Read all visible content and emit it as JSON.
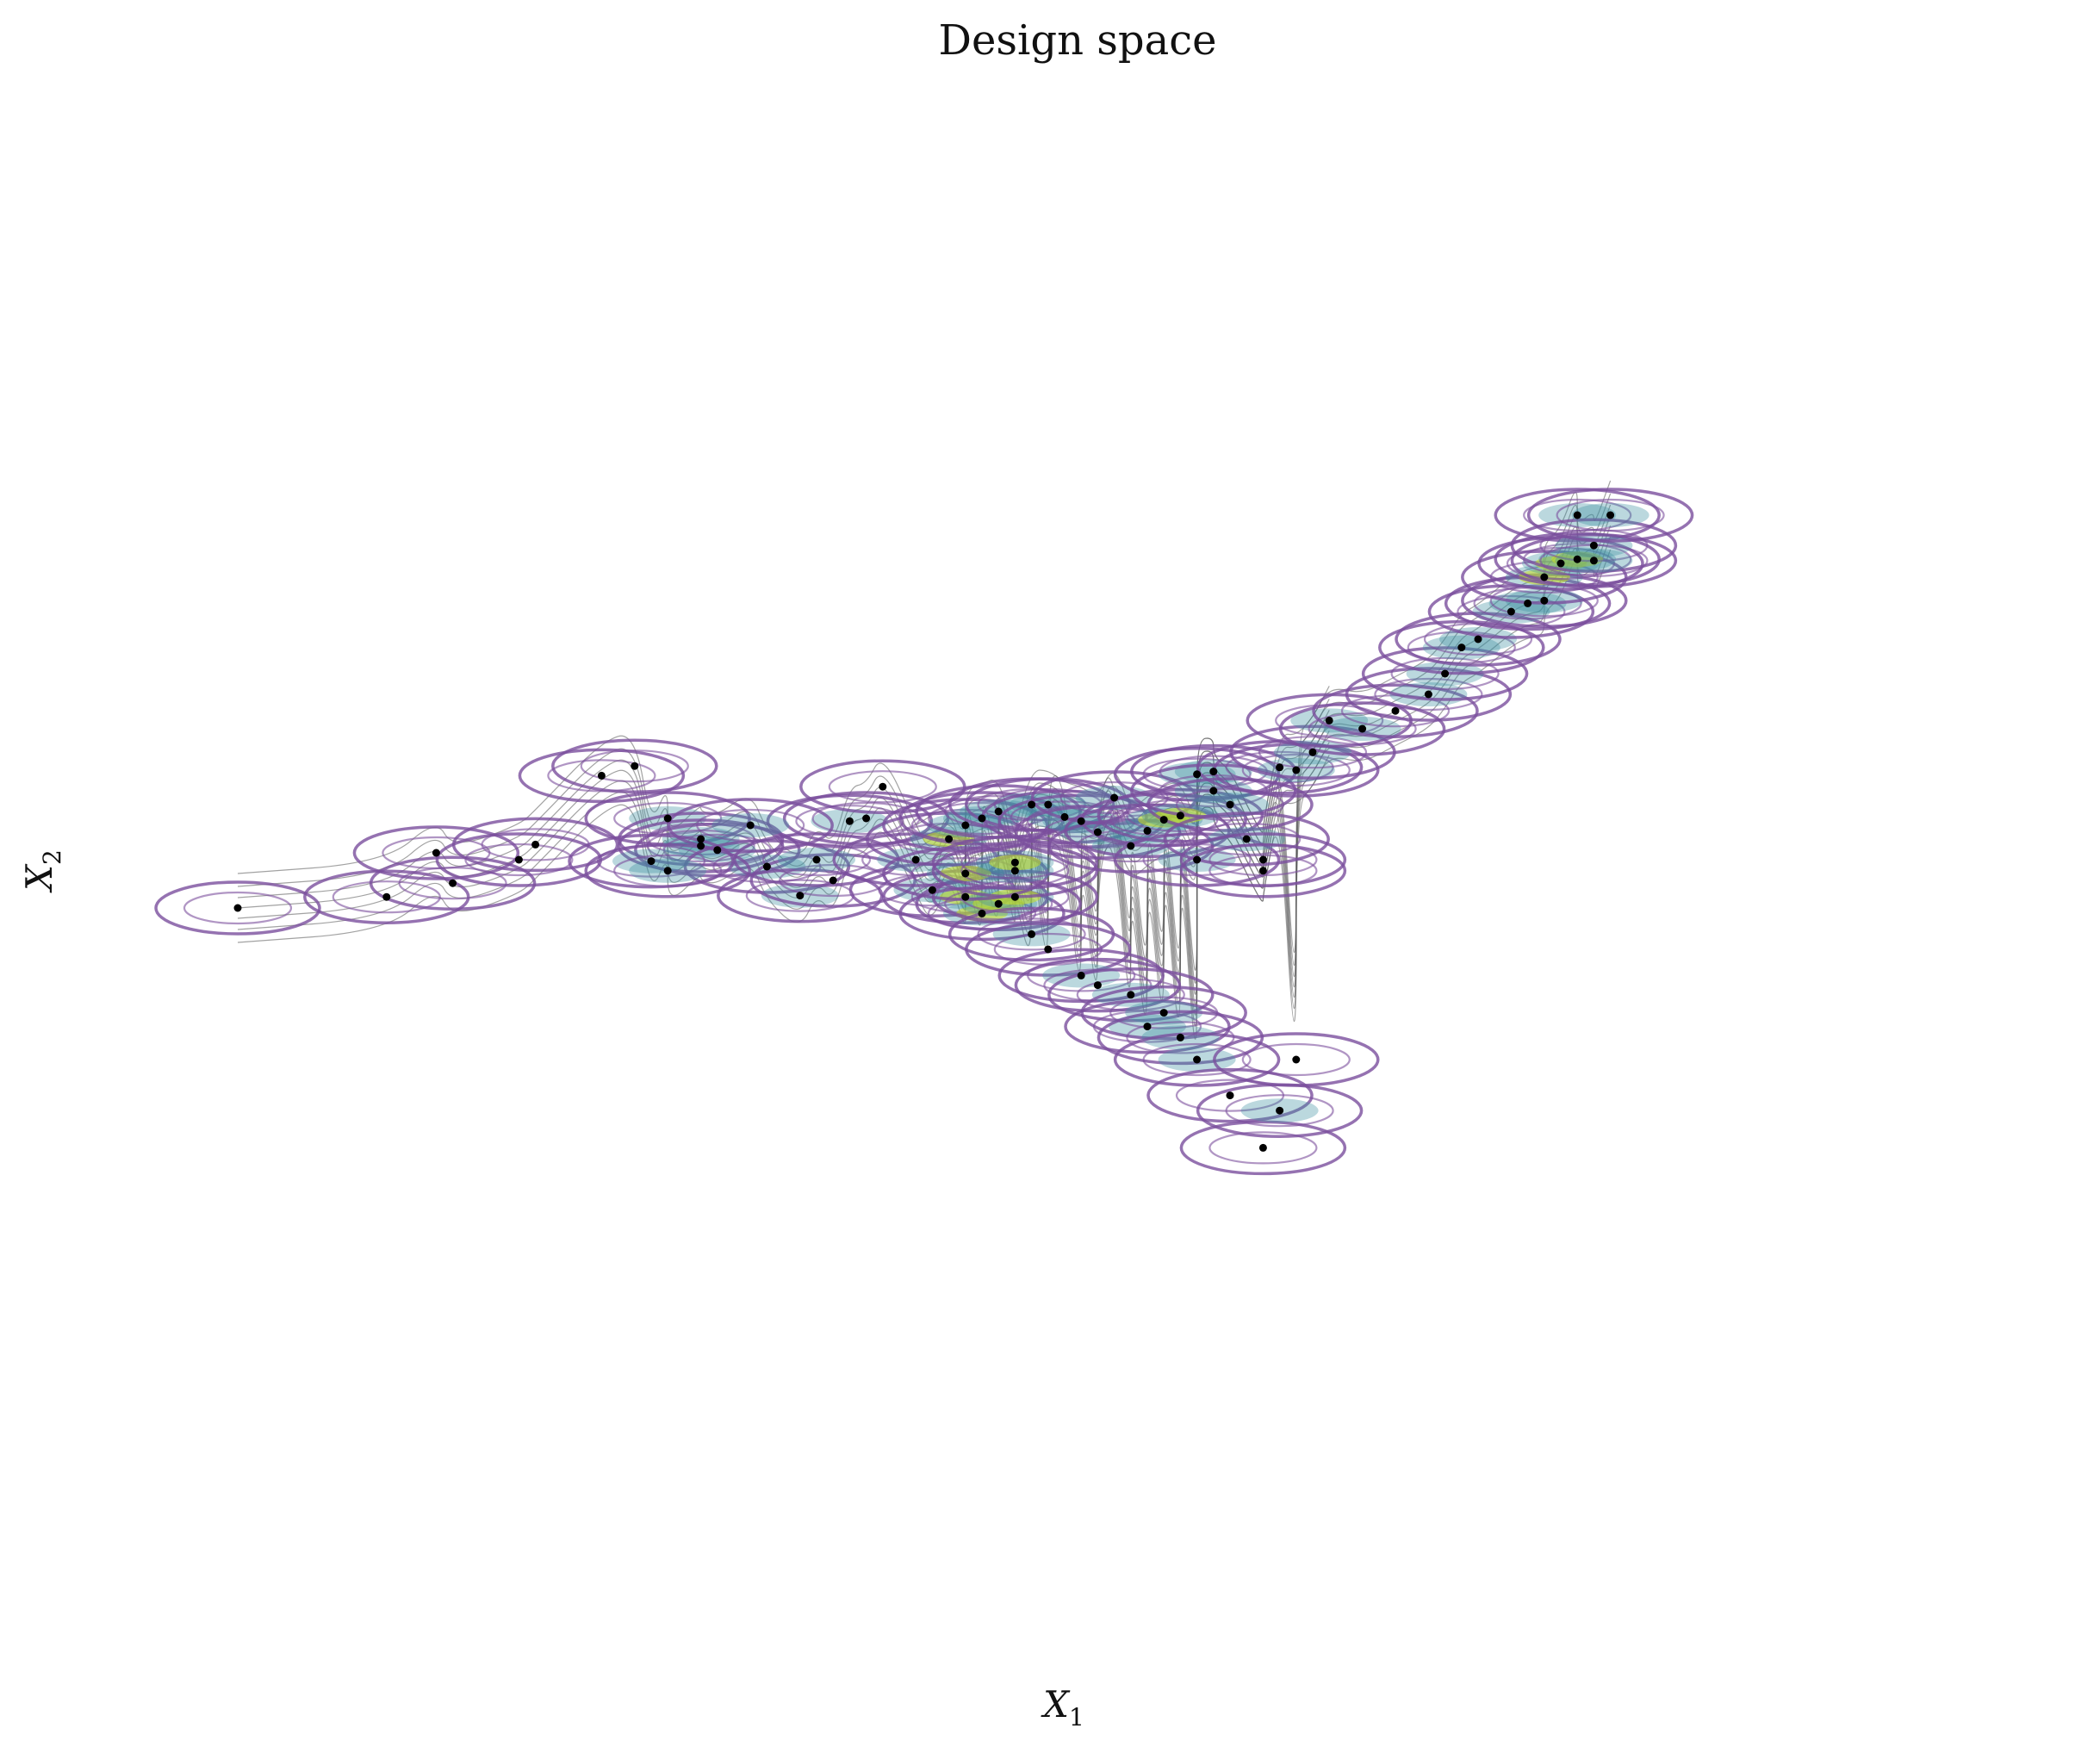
{
  "chart_data": {
    "type": "scatter",
    "title": "Design space",
    "xlabel": "X_1",
    "ylabel": "X_2",
    "xlabel_parts": {
      "base": "X",
      "sub": "1"
    },
    "ylabel_parts": {
      "base": "X",
      "sub": "2"
    },
    "axes_visible": false,
    "grid": false,
    "xlim": [
      0,
      1
    ],
    "ylim": [
      0,
      1
    ],
    "overlays": [
      "kernel density contours (viridis fill, purple outer levels)",
      "grey density contour lines"
    ],
    "colors": {
      "points": "#000000",
      "outer_contour": "#7b4f9d",
      "mid_contour": "#3b8fa0",
      "peak_contour": "#c8e020",
      "grey_contour": "#555555"
    },
    "series": [
      {
        "x": [
          0.05,
          0.17,
          0.14,
          0.18,
          0.22,
          0.23,
          0.27,
          0.29,
          0.31,
          0.33,
          0.33,
          0.34,
          0.37,
          0.39,
          0.41,
          0.42,
          0.43,
          0.44,
          0.47,
          0.49,
          0.5,
          0.51,
          0.52,
          0.53,
          0.54,
          0.56,
          0.57,
          0.59,
          0.6,
          0.61,
          0.62,
          0.63,
          0.65,
          0.67,
          0.68,
          0.69,
          0.3,
          0.31,
          0.36,
          0.4,
          0.46,
          0.48,
          0.49,
          0.49,
          0.5,
          0.51,
          0.52,
          0.52,
          0.53,
          0.54,
          0.55,
          0.56,
          0.57,
          0.58,
          0.59,
          0.6,
          0.61,
          0.62,
          0.63,
          0.63,
          0.64,
          0.64,
          0.65,
          0.66,
          0.67,
          0.67,
          0.68,
          0.69,
          0.7,
          0.71,
          0.73,
          0.75,
          0.77,
          0.78,
          0.79,
          0.8,
          0.82,
          0.83,
          0.84,
          0.84,
          0.85,
          0.86,
          0.86,
          0.87,
          0.87,
          0.88
        ],
        "y": [
          0.485,
          0.525,
          0.493,
          0.503,
          0.52,
          0.531,
          0.581,
          0.588,
          0.55,
          0.535,
          0.53,
          0.527,
          0.515,
          0.494,
          0.505,
          0.548,
          0.55,
          0.573,
          0.498,
          0.493,
          0.481,
          0.488,
          0.493,
          0.466,
          0.455,
          0.436,
          0.429,
          0.422,
          0.399,
          0.409,
          0.391,
          0.375,
          0.349,
          0.311,
          0.338,
          0.375,
          0.519,
          0.512,
          0.545,
          0.52,
          0.52,
          0.535,
          0.51,
          0.545,
          0.55,
          0.555,
          0.512,
          0.518,
          0.56,
          0.56,
          0.551,
          0.548,
          0.54,
          0.565,
          0.53,
          0.541,
          0.549,
          0.552,
          0.52,
          0.582,
          0.584,
          0.57,
          0.56,
          0.535,
          0.512,
          0.52,
          0.587,
          0.585,
          0.598,
          0.621,
          0.615,
          0.628,
          0.64,
          0.655,
          0.674,
          0.68,
          0.7,
          0.706,
          0.708,
          0.725,
          0.735,
          0.77,
          0.738,
          0.748,
          0.737,
          0.77
        ]
      }
    ]
  }
}
